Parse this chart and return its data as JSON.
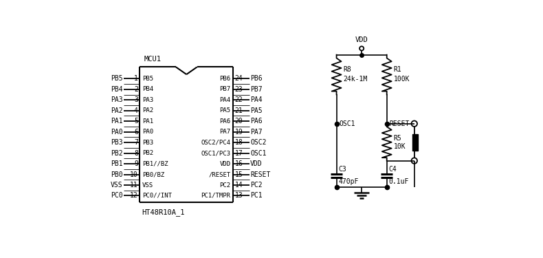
{
  "bg_color": "#ffffff",
  "left_pins": [
    {
      "num": 1,
      "name": "PB5"
    },
    {
      "num": 2,
      "name": "PB4"
    },
    {
      "num": 3,
      "name": "PA3"
    },
    {
      "num": 4,
      "name": "PA2"
    },
    {
      "num": 5,
      "name": "PA1"
    },
    {
      "num": 6,
      "name": "PA0"
    },
    {
      "num": 7,
      "name": "PB3"
    },
    {
      "num": 8,
      "name": "PB2"
    },
    {
      "num": 9,
      "name": "PB1"
    },
    {
      "num": 10,
      "name": "PB0"
    },
    {
      "num": 11,
      "name": "VSS"
    },
    {
      "num": 12,
      "name": "PC0"
    }
  ],
  "right_pins": [
    {
      "num": 24,
      "name": "PB6"
    },
    {
      "num": 23,
      "name": "PB7"
    },
    {
      "num": 22,
      "name": "PA4"
    },
    {
      "num": 21,
      "name": "PA5"
    },
    {
      "num": 20,
      "name": "PA6"
    },
    {
      "num": 19,
      "name": "PA7"
    },
    {
      "num": 18,
      "name": "OSC2"
    },
    {
      "num": 17,
      "name": "OSC1"
    },
    {
      "num": 16,
      "name": "VDD"
    },
    {
      "num": 15,
      "name": "RESET"
    },
    {
      "num": 14,
      "name": "PC2"
    },
    {
      "num": 13,
      "name": "PC1"
    }
  ],
  "left_inner": [
    "PB5",
    "PB4",
    "PA3",
    "PA2",
    "PA1",
    "PA0",
    "PB3",
    "PB2",
    "PB1//BZ",
    "PB0/BZ",
    "VSS",
    "PC0//INT"
  ],
  "right_inner": [
    "PB6",
    "PB7",
    "PA4",
    "PA5",
    "PA6",
    "PA7",
    "OSC2/PC4",
    "OSC1/PC3",
    "VDD",
    "/RESET",
    "PC2",
    "PC1/TMPR"
  ],
  "mcu_label": "MCU1",
  "chip_label": "HT48R10A_1",
  "line_color": "#000000",
  "text_color": "#000000",
  "fs_pin": 7.0,
  "fs_label": 7.5,
  "fs_inner": 6.5
}
